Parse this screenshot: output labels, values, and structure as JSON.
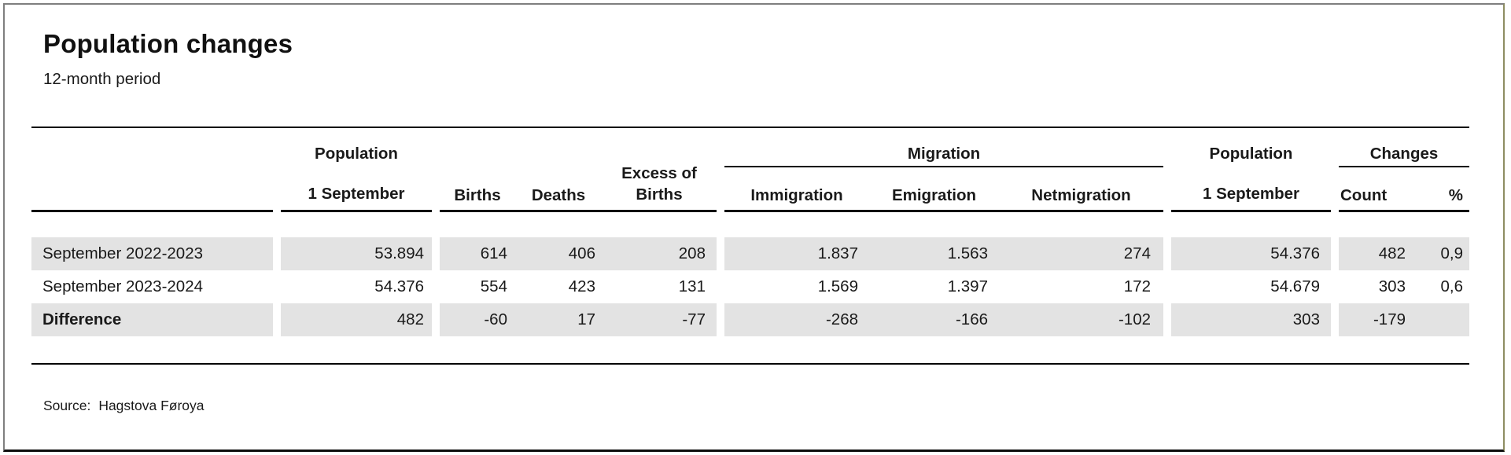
{
  "title": "Population changes",
  "subtitle": "12-month period",
  "colors": {
    "row_stripe": "#e3e3e3",
    "rule": "#000000",
    "frame_gray": "#7f7f7f",
    "frame_olive": "#8e8e62"
  },
  "table": {
    "groups": {
      "population_first": "Population",
      "migration": "Migration",
      "population_second": "Population",
      "changes": "Changes"
    },
    "columns": {
      "pop1": "1 September",
      "births": "Births",
      "deaths": "Deaths",
      "excess_line1": "Excess of",
      "excess_line2": "Births",
      "immigration": "Immigration",
      "emigration": "Emigration",
      "netmigration": "Netmigration",
      "pop2": "1 September",
      "count": "Count",
      "percent": "%"
    },
    "rows": [
      {
        "label": "September 2022-2023",
        "pop1": "53.894",
        "births": "614",
        "deaths": "406",
        "excess": "208",
        "immigration": "1.837",
        "emigration": "1.563",
        "netmigration": "274",
        "pop2": "54.376",
        "count": "482",
        "percent": "0,9"
      },
      {
        "label": "September 2023-2024",
        "pop1": "54.376",
        "births": "554",
        "deaths": "423",
        "excess": "131",
        "immigration": "1.569",
        "emigration": "1.397",
        "netmigration": "172",
        "pop2": "54.679",
        "count": "303",
        "percent": "0,6"
      },
      {
        "label": "Difference",
        "pop1": "482",
        "births": "-60",
        "deaths": "17",
        "excess": "-77",
        "immigration": "-268",
        "emigration": "-166",
        "netmigration": "-102",
        "pop2": "303",
        "count": "-179",
        "percent": ""
      }
    ]
  },
  "source": {
    "label": "Source:",
    "value": "Hagstova Føroya"
  }
}
